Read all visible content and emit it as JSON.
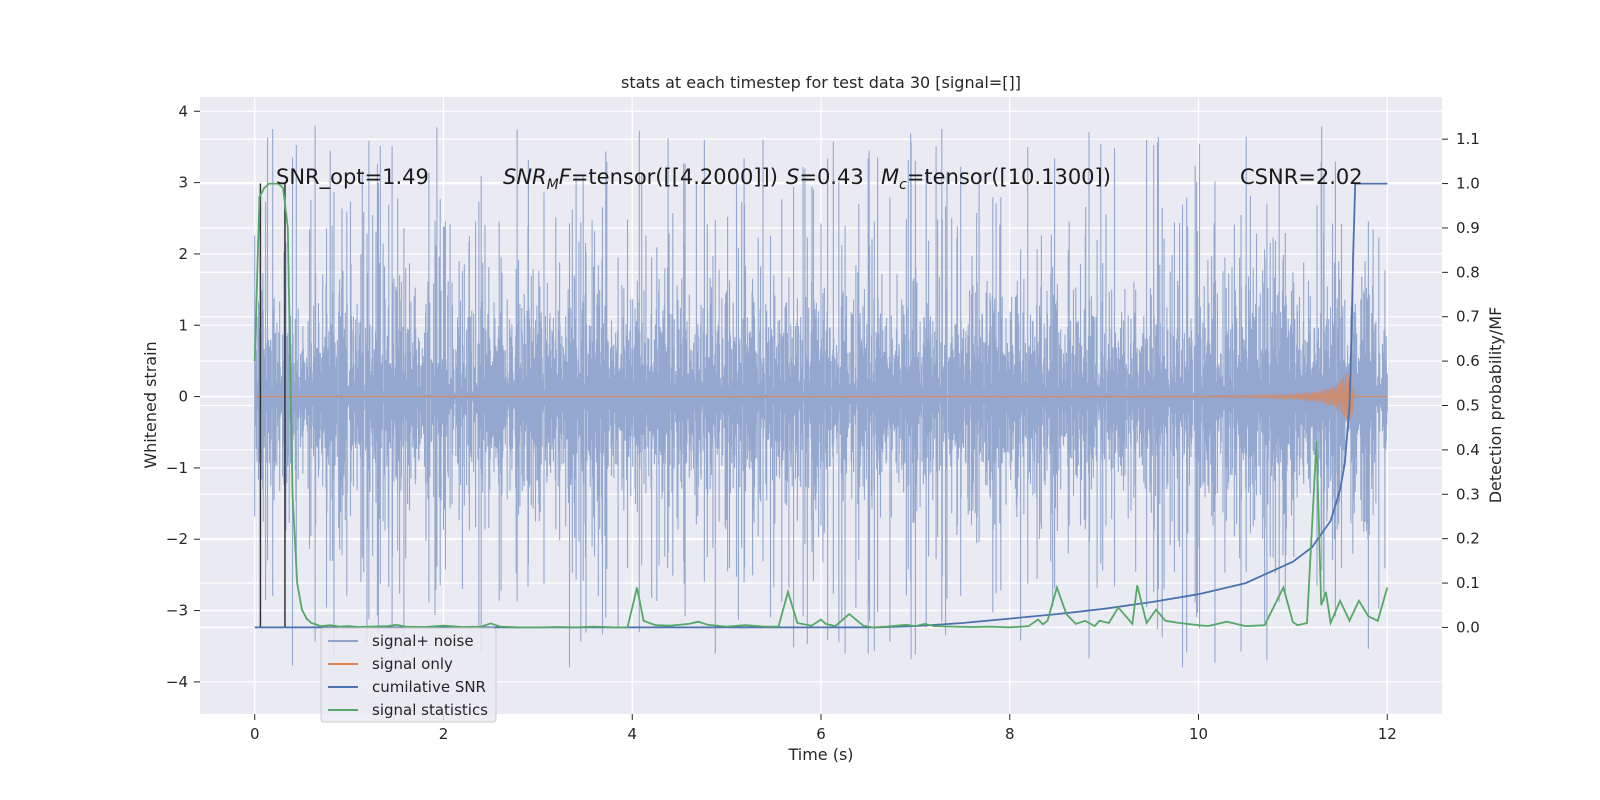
{
  "chart_data": {
    "type": "line",
    "title": "stats at each timestep for test data 30 [signal=[]]",
    "xlabel": "Time (s)",
    "ylabel_left": "Whitened strain",
    "ylabel_right": "Detection probability/MF",
    "xlim": [
      -0.58,
      12.58
    ],
    "ylim_left": [
      -4.45,
      4.2
    ],
    "ylim_right": [
      -0.195,
      1.195
    ],
    "x_ticks": [
      0,
      2,
      4,
      6,
      8,
      10,
      12
    ],
    "x_tick_labels": [
      "0",
      "2",
      "4",
      "6",
      "8",
      "10",
      "12"
    ],
    "y_left_ticks": [
      -4,
      -3,
      -2,
      -1,
      0,
      1,
      2,
      3,
      4
    ],
    "y_left_tick_labels": [
      "−4",
      "−3",
      "−2",
      "−1",
      "0",
      "1",
      "2",
      "3",
      "4"
    ],
    "y_right_ticks": [
      0.0,
      0.1,
      0.2,
      0.3,
      0.4,
      0.5,
      0.6,
      0.7,
      0.8,
      0.9,
      1.0,
      1.1
    ],
    "y_right_tick_labels": [
      "0.0",
      "0.1",
      "0.2",
      "0.3",
      "0.4",
      "0.5",
      "0.6",
      "0.7",
      "0.8",
      "0.9",
      "1.0",
      "1.1"
    ],
    "annotations": {
      "snr_opt": "SNR_opt=1.49",
      "snr_mf_base": "SNR",
      "snr_mf_sub": "M",
      "snr_mf_var": "F",
      "snr_mf_value": "=tensor([[4.2000]])",
      "s_var": "S",
      "s_value": "=0.43",
      "mc_base": "M",
      "mc_sub": "c",
      "mc_value": "=tensor([10.1300])",
      "csnr": "CSNR=2.02"
    },
    "legend": {
      "placement": "lower-left",
      "entries": [
        "signal+ noise",
        "signal only",
        "cumilative SNR",
        "signal statistics"
      ]
    },
    "colors": {
      "noise": "#8fa3cc",
      "signal_only": "#dd8452",
      "cumulative_snr": "#4c72b0",
      "signal_statistics": "#55a868",
      "vlines": "#333333",
      "background": "#eaeaf2"
    },
    "series": [
      {
        "name": "signal+ noise",
        "axis": "left",
        "x_range": [
          0,
          12
        ],
        "typical_amplitude": [
          -2.1,
          2.1
        ],
        "extreme_range": [
          -4.1,
          3.85
        ]
      },
      {
        "name": "signal only",
        "axis": "left",
        "x": [
          0,
          10.0,
          10.5,
          11.0,
          11.3,
          11.5,
          11.62,
          11.65,
          12.0
        ],
        "envelope": [
          0,
          0.005,
          0.01,
          0.03,
          0.08,
          0.2,
          0.45,
          0.0,
          0.0
        ]
      },
      {
        "name": "cumilative SNR",
        "axis": "right",
        "x": [
          0,
          6.6,
          7,
          7.5,
          8,
          8.5,
          9,
          9.5,
          10,
          10.5,
          11,
          11.2,
          11.4,
          11.5,
          11.55,
          11.6,
          11.62,
          11.64,
          11.66,
          11.7,
          12.0
        ],
        "values": [
          0,
          0,
          0.003,
          0.01,
          0.02,
          0.03,
          0.042,
          0.057,
          0.075,
          0.1,
          0.148,
          0.18,
          0.24,
          0.31,
          0.37,
          0.5,
          0.65,
          0.85,
          1.0,
          1.0,
          1.0
        ]
      },
      {
        "name": "signal statistics",
        "axis": "right",
        "x": [
          0,
          0.05,
          0.1,
          0.15,
          0.2,
          0.25,
          0.3,
          0.35,
          0.4,
          0.45,
          0.5,
          0.55,
          0.6,
          0.7,
          0.8,
          0.9,
          1.0,
          1.1,
          1.2,
          1.4,
          1.5,
          1.6,
          1.8,
          2.0,
          2.2,
          2.4,
          2.5,
          2.6,
          2.8,
          3.0,
          3.2,
          3.4,
          3.6,
          3.8,
          3.95,
          4.05,
          4.12,
          4.25,
          4.4,
          4.6,
          4.7,
          4.8,
          5.0,
          5.2,
          5.4,
          5.55,
          5.65,
          5.75,
          5.9,
          6.0,
          6.05,
          6.15,
          6.3,
          6.4,
          6.45,
          6.55,
          6.7,
          6.9,
          7.0,
          7.1,
          7.2,
          7.4,
          7.6,
          7.8,
          8.0,
          8.2,
          8.3,
          8.35,
          8.4,
          8.5,
          8.6,
          8.7,
          8.8,
          8.9,
          8.95,
          9.05,
          9.15,
          9.3,
          9.35,
          9.45,
          9.55,
          9.65,
          9.8,
          10.0,
          10.1,
          10.3,
          10.5,
          10.7,
          10.9,
          11.0,
          11.05,
          11.15,
          11.25,
          11.3,
          11.35,
          11.4,
          11.5,
          11.6,
          11.7,
          11.8,
          11.9,
          12.0
        ],
        "values": [
          0.6,
          0.97,
          0.99,
          1.0,
          1.0,
          1.0,
          0.99,
          0.9,
          0.3,
          0.1,
          0.04,
          0.02,
          0.01,
          0.003,
          0.005,
          0.002,
          0.003,
          0.001,
          0.002,
          0.003,
          0.006,
          0.002,
          0.001,
          0.004,
          0.001,
          0.002,
          0.009,
          0.002,
          0.0,
          0.0,
          0.001,
          0.0,
          0.002,
          0.0,
          0.0,
          0.09,
          0.015,
          0.005,
          0.004,
          0.008,
          0.013,
          0.006,
          0.002,
          0.005,
          0.002,
          0.002,
          0.08,
          0.01,
          0.004,
          0.018,
          0.008,
          0.003,
          0.03,
          0.012,
          0.004,
          0.0,
          0.002,
          0.006,
          0.003,
          0.008,
          0.003,
          0.002,
          0.001,
          0.002,
          0.0,
          0.003,
          0.018,
          0.007,
          0.015,
          0.09,
          0.03,
          0.008,
          0.015,
          0.003,
          0.015,
          0.01,
          0.045,
          0.008,
          0.095,
          0.01,
          0.04,
          0.015,
          0.01,
          0.005,
          0.003,
          0.013,
          0.003,
          0.005,
          0.09,
          0.012,
          0.005,
          0.01,
          0.42,
          0.05,
          0.08,
          0.01,
          0.06,
          0.015,
          0.06,
          0.025,
          0.015,
          0.09
        ]
      },
      {
        "name": "vertical markers",
        "axis": "right",
        "x": [
          0.06,
          0.32
        ],
        "values": [
          1.0,
          1.0
        ]
      }
    ]
  }
}
